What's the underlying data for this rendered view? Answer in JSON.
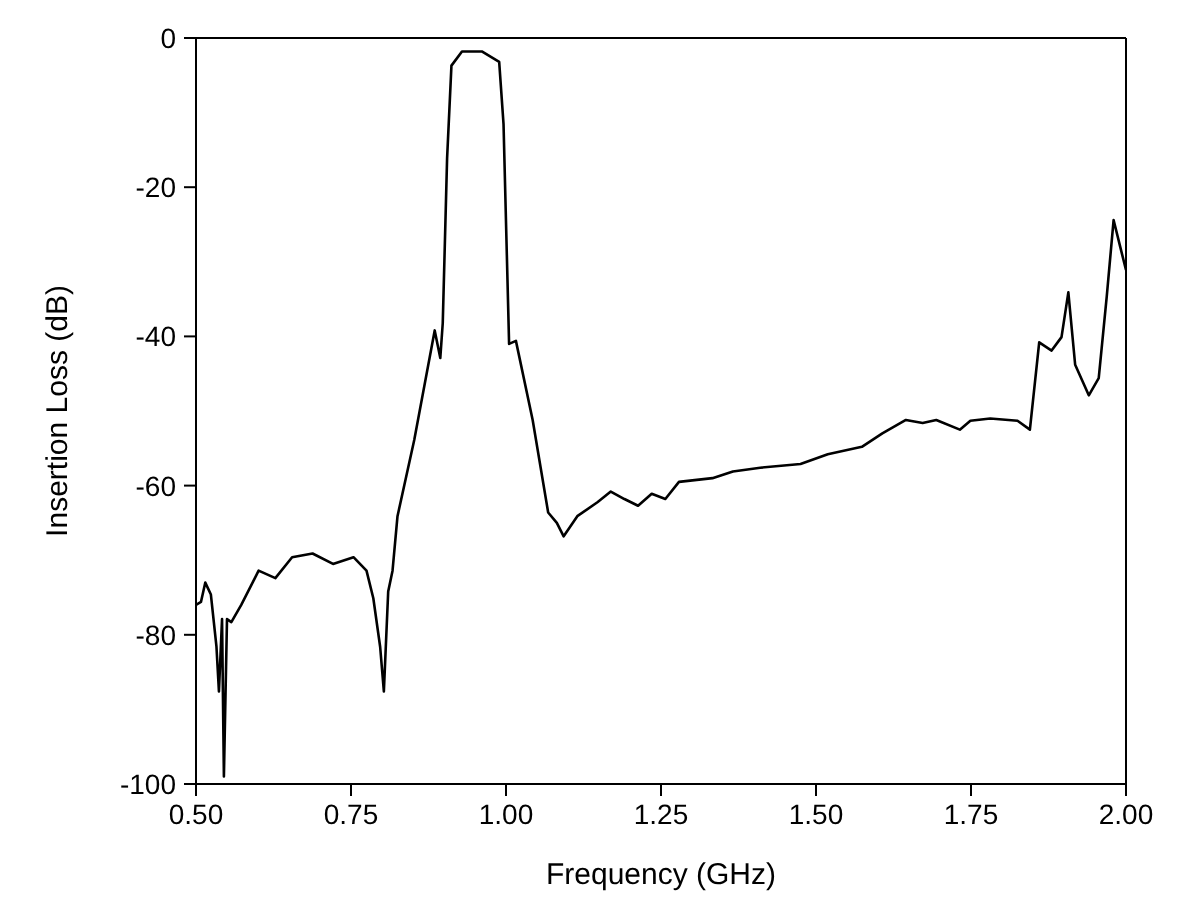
{
  "chart_data": {
    "type": "line",
    "xlabel": "Frequency (GHz)",
    "ylabel": "Insertion Loss (dB)",
    "xlim": [
      0.5,
      2.0
    ],
    "ylim": [
      -100,
      0
    ],
    "xticks": [
      {
        "value": 0.5,
        "label": "0.50"
      },
      {
        "value": 0.75,
        "label": "0.75"
      },
      {
        "value": 1.0,
        "label": "1.00"
      },
      {
        "value": 1.25,
        "label": "1.25"
      },
      {
        "value": 1.5,
        "label": "1.50"
      },
      {
        "value": 1.75,
        "label": "1.75"
      },
      {
        "value": 2.0,
        "label": "2.00"
      }
    ],
    "yticks": [
      -100,
      -80,
      -60,
      -40,
      -20,
      0
    ],
    "grid": false,
    "legend": false,
    "marker": "none",
    "line_style": "solid",
    "series": [
      {
        "color": "#000000",
        "x": [
          0.5,
          0.508,
          0.515,
          0.524,
          0.533,
          0.537,
          0.542,
          0.545,
          0.55,
          0.557,
          0.573,
          0.601,
          0.628,
          0.655,
          0.688,
          0.721,
          0.754,
          0.775,
          0.786,
          0.797,
          0.803,
          0.81,
          0.817,
          0.825,
          0.852,
          0.885,
          0.894,
          0.898,
          0.905,
          0.912,
          0.929,
          0.961,
          0.989,
          0.996,
          1.005,
          1.016,
          1.043,
          1.068,
          1.082,
          1.093,
          1.115,
          1.148,
          1.169,
          1.191,
          1.213,
          1.235,
          1.257,
          1.279,
          1.333,
          1.366,
          1.41,
          1.475,
          1.519,
          1.574,
          1.607,
          1.645,
          1.672,
          1.694,
          1.732,
          1.749,
          1.781,
          1.825,
          1.845,
          1.86,
          1.88,
          1.896,
          1.907,
          1.918,
          1.94,
          1.956,
          1.969,
          1.98,
          1.991,
          2.0
        ],
        "values": [
          -76,
          -75.6,
          -73,
          -74.6,
          -81.6,
          -87.6,
          -77.9,
          -99,
          -77.9,
          -78.3,
          -76,
          -71.4,
          -72.4,
          -69.6,
          -69.1,
          -70.5,
          -69.6,
          -71.4,
          -75.1,
          -81.6,
          -87.6,
          -74.2,
          -71.4,
          -64.1,
          -53.9,
          -39.2,
          -42.9,
          -38.2,
          -16.1,
          -3.7,
          -1.8,
          -1.8,
          -3.2,
          -11.5,
          -41,
          -40.6,
          -51.2,
          -63.6,
          -65,
          -66.8,
          -64.1,
          -62.2,
          -60.8,
          -61.8,
          -62.7,
          -61.1,
          -61.8,
          -59.5,
          -59,
          -58.1,
          -57.6,
          -57.1,
          -55.8,
          -54.8,
          -53,
          -51.2,
          -51.6,
          -51.2,
          -52.5,
          -51.3,
          -51,
          -51.3,
          -52.5,
          -40.8,
          -41.9,
          -40.1,
          -34.1,
          -43.8,
          -47.9,
          -45.6,
          -34.6,
          -24.4,
          -28.1,
          -31.1
        ]
      }
    ]
  }
}
